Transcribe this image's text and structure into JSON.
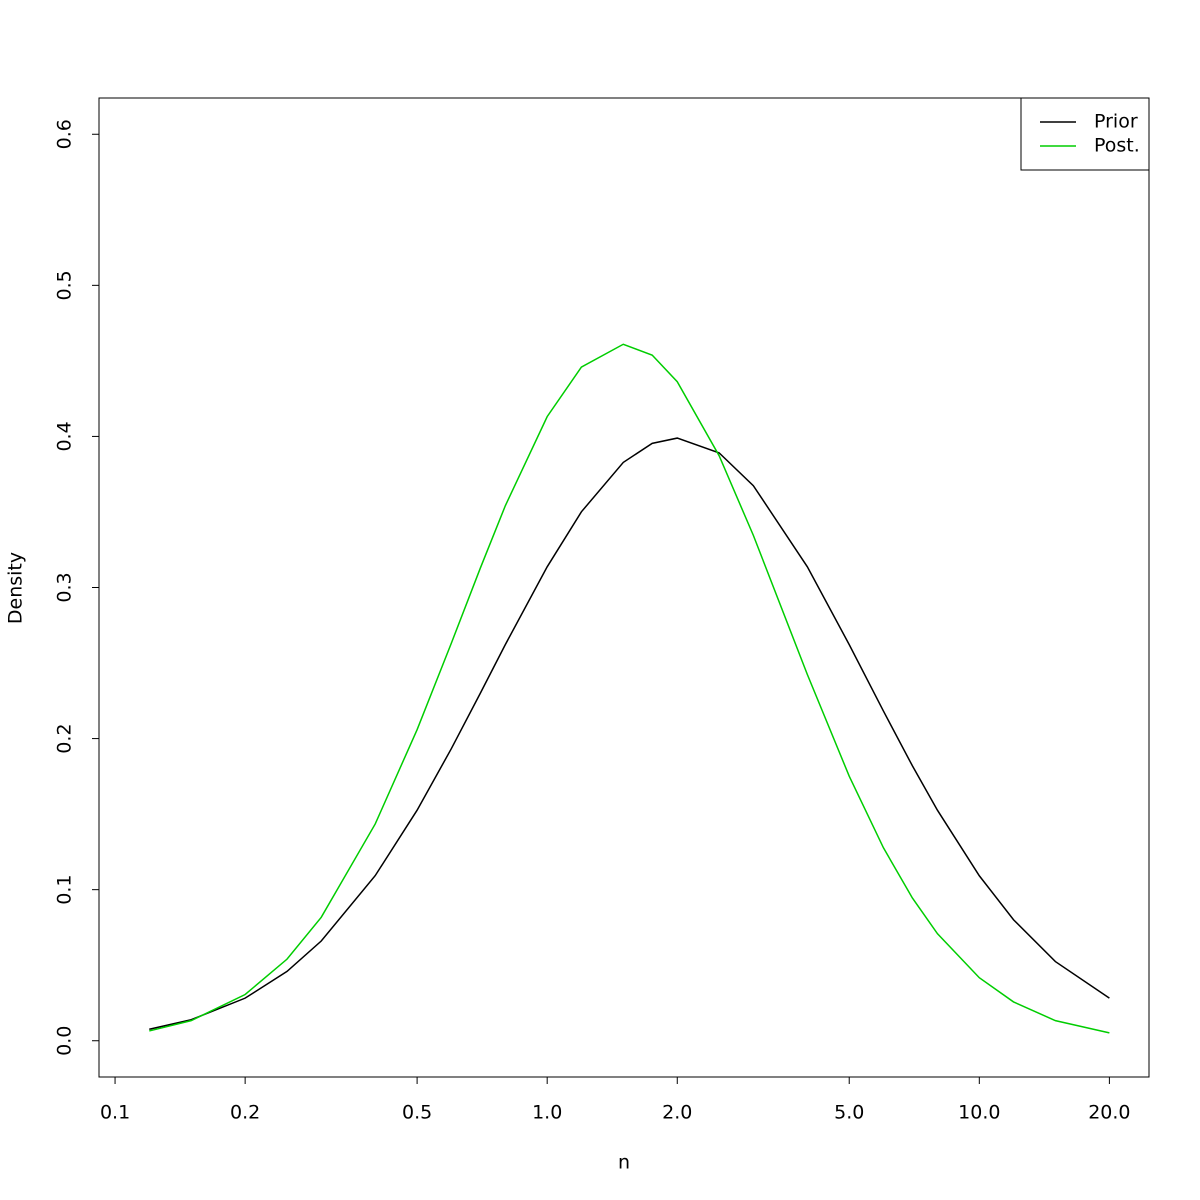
{
  "chart_data": {
    "type": "line",
    "x_label": "n",
    "y_label": "Density",
    "xlog": true,
    "x": [
      0.12,
      0.15,
      0.2,
      0.25,
      0.3,
      0.4,
      0.5,
      0.6,
      0.7,
      0.8,
      1.0,
      1.2,
      1.5,
      1.75,
      2.0,
      2.5,
      3,
      4,
      5,
      6,
      7,
      8,
      10,
      12,
      15,
      20
    ],
    "series": [
      {
        "name": "Prior",
        "color": "#000000",
        "values": [
          0.0076,
          0.0139,
          0.0282,
          0.0459,
          0.066,
          0.1093,
          0.1526,
          0.1933,
          0.2299,
          0.2622,
          0.3137,
          0.3501,
          0.3828,
          0.3954,
          0.3989,
          0.3891,
          0.3674,
          0.3137,
          0.2622,
          0.2182,
          0.182,
          0.1526,
          0.1092,
          0.0801,
          0.0524,
          0.0282
        ]
      },
      {
        "name": "Post.",
        "color": "#00cd00",
        "values": [
          0.0065,
          0.0133,
          0.0306,
          0.054,
          0.0817,
          0.1435,
          0.2059,
          0.2631,
          0.3127,
          0.3541,
          0.4131,
          0.4459,
          0.461,
          0.4538,
          0.4362,
          0.3872,
          0.3345,
          0.2424,
          0.1751,
          0.1277,
          0.0945,
          0.0709,
          0.0417,
          0.0257,
          0.0133,
          0.0052
        ]
      }
    ],
    "xlim": [
      0.0918,
      24.7
    ],
    "ylim": [
      -0.024,
      0.624
    ],
    "xticks": [
      0.1,
      0.2,
      0.5,
      {
        "value": 1,
        "label": "1.0"
      },
      {
        "value": 2,
        "label": "2.0"
      },
      {
        "value": 5,
        "label": "5.0"
      },
      {
        "value": 10,
        "label": "10.0"
      },
      {
        "value": 20,
        "label": "20.0"
      }
    ],
    "yticks": [
      {
        "value": 0,
        "label": "0.0"
      },
      0.1,
      0.2,
      0.3,
      0.4,
      0.5,
      0.6
    ],
    "legend": "top-right"
  }
}
